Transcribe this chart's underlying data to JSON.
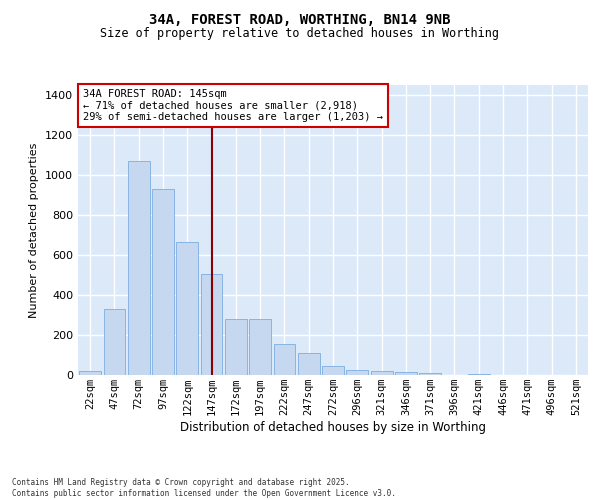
{
  "title1": "34A, FOREST ROAD, WORTHING, BN14 9NB",
  "title2": "Size of property relative to detached houses in Worthing",
  "xlabel": "Distribution of detached houses by size in Worthing",
  "ylabel": "Number of detached properties",
  "categories": [
    "22sqm",
    "47sqm",
    "72sqm",
    "97sqm",
    "122sqm",
    "147sqm",
    "172sqm",
    "197sqm",
    "222sqm",
    "247sqm",
    "272sqm",
    "296sqm",
    "321sqm",
    "346sqm",
    "371sqm",
    "396sqm",
    "421sqm",
    "446sqm",
    "471sqm",
    "496sqm",
    "521sqm"
  ],
  "values": [
    20,
    330,
    1070,
    930,
    665,
    505,
    280,
    280,
    155,
    110,
    45,
    25,
    20,
    15,
    8,
    0,
    7,
    0,
    0,
    0,
    0
  ],
  "bar_color": "#c5d8f0",
  "bar_edge_color": "#7aade0",
  "vline_index": 5,
  "vline_color": "#8b0000",
  "annotation_title": "34A FOREST ROAD: 145sqm",
  "annotation_line1": "← 71% of detached houses are smaller (2,918)",
  "annotation_line2": "29% of semi-detached houses are larger (1,203) →",
  "annotation_box_edgecolor": "#cc0000",
  "ylim": [
    0,
    1450
  ],
  "yticks": [
    0,
    200,
    400,
    600,
    800,
    1000,
    1200,
    1400
  ],
  "plot_bg_color": "#dce9f8",
  "fig_bg_color": "#ffffff",
  "grid_color": "#ffffff",
  "footer1": "Contains HM Land Registry data © Crown copyright and database right 2025.",
  "footer2": "Contains public sector information licensed under the Open Government Licence v3.0."
}
